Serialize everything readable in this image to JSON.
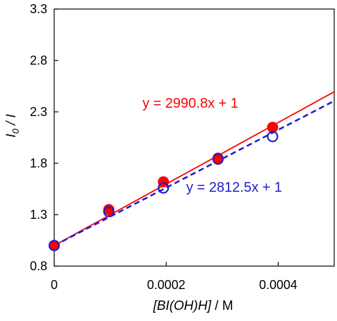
{
  "chart_data": {
    "type": "scatter",
    "xlabel_italic": "[BI(OH)H]",
    "xlabel_unit": " / M",
    "ylabel_i0": "I",
    "ylabel_sub": "0",
    "ylabel_rest": " / I",
    "xlim": [
      0,
      0.0005
    ],
    "ylim": [
      0.8,
      3.3
    ],
    "x_ticks": [
      0,
      0.0002,
      0.0004
    ],
    "x_tick_labels": [
      "0",
      "0.0002",
      "0.0004"
    ],
    "y_ticks": [
      0.8,
      1.3,
      1.8,
      2.3,
      2.8,
      3.3
    ],
    "y_tick_labels": [
      "0.8",
      "1.3",
      "1.8",
      "2.3",
      "2.8",
      "3.3"
    ],
    "grid": false,
    "series": [
      {
        "color": "#ff0000",
        "marker": "filled-circle",
        "line_style": "solid",
        "x": [
          0,
          9.75e-05,
          0.000195,
          0.0002925,
          0.00039
        ],
        "y": [
          1.0,
          1.35,
          1.62,
          1.85,
          2.15
        ],
        "fit": {
          "slope": 2990.8,
          "intercept": 1
        },
        "equation": "y = 2990.8x + 1"
      },
      {
        "color": "#2020c8",
        "marker": "open-circle",
        "line_style": "dashed",
        "x": [
          0,
          9.75e-05,
          0.000195,
          0.0002925,
          0.00039
        ],
        "y": [
          1.0,
          1.33,
          1.56,
          1.84,
          2.06
        ],
        "fit": {
          "slope": 2812.5,
          "intercept": 1
        },
        "equation": "y = 2812.5x + 1"
      }
    ]
  }
}
